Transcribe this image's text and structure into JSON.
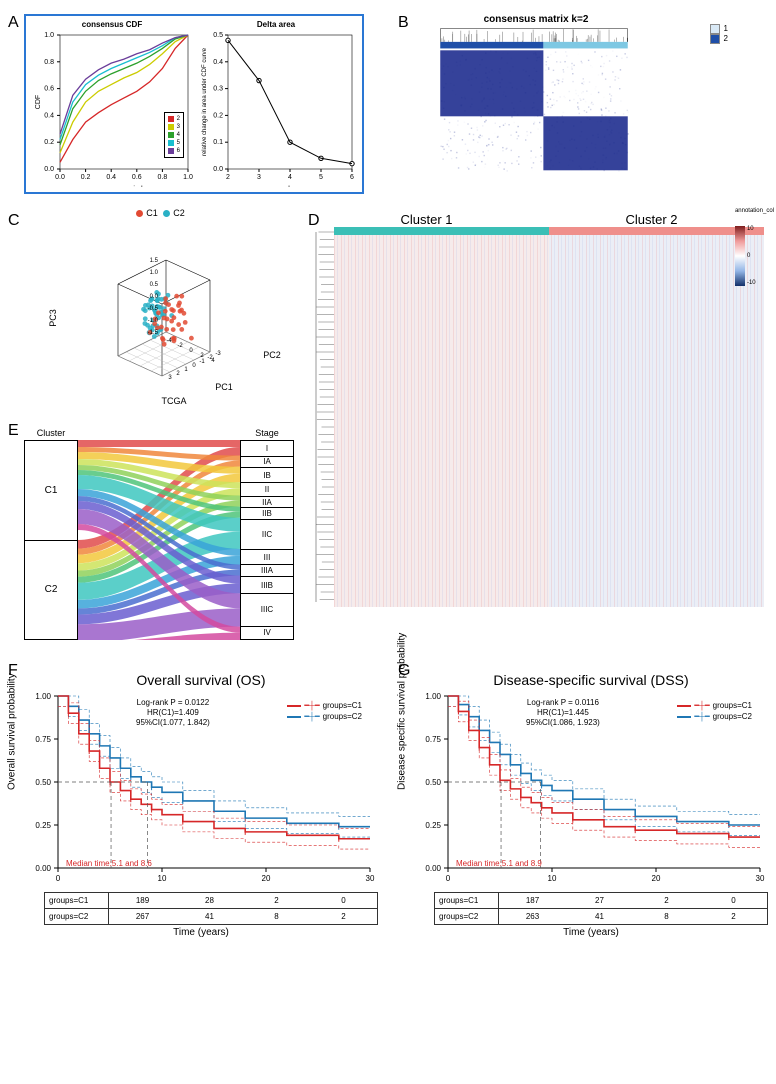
{
  "labels": {
    "A": "A",
    "B": "B",
    "C": "C",
    "D": "D",
    "E": "E",
    "F": "F",
    "G": "G"
  },
  "panelA": {
    "cdf": {
      "title": "consensus CDF",
      "xlabel": "consensus index",
      "ylabel": "CDF",
      "xlim": [
        0,
        1
      ],
      "ylim": [
        0,
        1
      ],
      "xticks": [
        0.0,
        0.2,
        0.4,
        0.6,
        0.8,
        1.0
      ],
      "yticks": [
        0.0,
        0.2,
        0.4,
        0.6,
        0.8,
        1.0
      ],
      "series": [
        {
          "k": "2",
          "color": "#d62728",
          "y": [
            0.05,
            0.22,
            0.35,
            0.42,
            0.48,
            0.53,
            0.58,
            0.65,
            0.75,
            0.9,
            1.0
          ]
        },
        {
          "k": "3",
          "color": "#cccc00",
          "y": [
            0.12,
            0.35,
            0.5,
            0.58,
            0.63,
            0.68,
            0.72,
            0.78,
            0.86,
            0.95,
            1.0
          ]
        },
        {
          "k": "4",
          "color": "#2ca02c",
          "y": [
            0.18,
            0.45,
            0.58,
            0.66,
            0.71,
            0.75,
            0.79,
            0.84,
            0.9,
            0.97,
            1.0
          ]
        },
        {
          "k": "5",
          "color": "#17becf",
          "y": [
            0.22,
            0.5,
            0.63,
            0.7,
            0.75,
            0.79,
            0.83,
            0.87,
            0.92,
            0.98,
            1.0
          ]
        },
        {
          "k": "6",
          "color": "#6a3d9a",
          "y": [
            0.26,
            0.55,
            0.67,
            0.74,
            0.79,
            0.82,
            0.86,
            0.89,
            0.94,
            0.98,
            1.0
          ]
        }
      ],
      "legend_title": ""
    },
    "delta": {
      "title": "Delta area",
      "xlabel": "k",
      "ylabel": "relative change in area under CDF curve",
      "x": [
        2,
        3,
        4,
        5,
        6
      ],
      "y": [
        0.48,
        0.33,
        0.1,
        0.04,
        0.02
      ],
      "xlim": [
        2,
        6
      ],
      "ylim": [
        0,
        0.5
      ],
      "color": "#000000",
      "marker": "circle"
    },
    "border_color": "#2a77d4"
  },
  "panelB": {
    "title": "consensus matrix k=2",
    "cluster_bar": [
      "#1f4fa8",
      "#7ec8e3"
    ],
    "legend": [
      {
        "label": "1",
        "color": "#d9e9f6"
      },
      {
        "label": "2",
        "color": "#1f4fa8"
      }
    ],
    "matrix_low": "#ffffff",
    "matrix_high": "#1f2e8f",
    "block_split": 0.55
  },
  "panelC": {
    "legend": [
      {
        "label": "C1",
        "color": "#e24a33"
      },
      {
        "label": "C2",
        "color": "#2ab0c5"
      }
    ],
    "axes": {
      "x": "PC1",
      "y": "PC3",
      "z": "PC2",
      "sub": "TCGA"
    },
    "xticks": [
      -4,
      -2,
      0,
      2,
      4
    ],
    "yticks": [
      -1.5,
      -1.0,
      -0.5,
      0.0,
      0.5,
      1.0,
      1.5
    ],
    "zticks": [
      -3,
      -2,
      -1,
      0,
      1,
      2,
      3
    ],
    "c1_pts": [
      [
        0.2,
        0.0,
        1.3
      ],
      [
        1.1,
        0.5,
        0.6
      ],
      [
        1.8,
        0.2,
        0.0
      ],
      [
        2.5,
        -0.3,
        -0.5
      ],
      [
        0.7,
        0.8,
        -1.1
      ],
      [
        1.3,
        -0.6,
        1.0
      ],
      [
        0.0,
        0.6,
        -0.2
      ],
      [
        2.0,
        0.9,
        0.8
      ],
      [
        2.8,
        -0.8,
        -1.5
      ],
      [
        0.5,
        -0.2,
        2.1
      ],
      [
        1.6,
        0.3,
        -0.9
      ],
      [
        3.1,
        0.1,
        0.3
      ],
      [
        0.9,
        -0.9,
        0.6
      ],
      [
        2.2,
        0.7,
        -0.3
      ],
      [
        1.0,
        0.0,
        -1.8
      ],
      [
        0.3,
        0.4,
        0.9
      ],
      [
        1.9,
        -0.4,
        1.5
      ],
      [
        0.6,
        0.9,
        0.2
      ],
      [
        2.4,
        -0.1,
        -1.0
      ],
      [
        1.4,
        0.5,
        0.0
      ],
      [
        0.8,
        -0.5,
        -0.6
      ],
      [
        2.7,
        0.3,
        0.9
      ],
      [
        1.2,
        0.8,
        -1.4
      ],
      [
        0.1,
        -0.3,
        0.4
      ],
      [
        1.7,
        0.1,
        2.0
      ],
      [
        2.1,
        -0.7,
        0.2
      ],
      [
        0.4,
        0.2,
        -0.9
      ],
      [
        2.9,
        0.6,
        -0.2
      ],
      [
        1.5,
        -0.2,
        0.7
      ],
      [
        0.0,
        0.0,
        0.0
      ],
      [
        2.3,
        0.4,
        1.2
      ],
      [
        1.1,
        -0.8,
        -0.4
      ],
      [
        0.7,
        0.3,
        1.6
      ],
      [
        2.6,
        -0.5,
        0.5
      ],
      [
        1.8,
        0.7,
        -0.7
      ]
    ],
    "c2_pts": [
      [
        -0.8,
        0.2,
        0.5
      ],
      [
        -1.5,
        0.6,
        -0.3
      ],
      [
        -2.1,
        -0.1,
        0.9
      ],
      [
        -0.3,
        0.8,
        -0.7
      ],
      [
        -1.0,
        -0.4,
        0.2
      ],
      [
        -1.8,
        0.3,
        1.1
      ],
      [
        -2.5,
        0.0,
        -0.5
      ],
      [
        -0.6,
        -0.7,
        0.8
      ],
      [
        -1.3,
        0.5,
        -1.0
      ],
      [
        -2.0,
        -0.3,
        0.0
      ],
      [
        -0.1,
        0.1,
        0.6
      ],
      [
        -1.6,
        0.7,
        0.4
      ],
      [
        -2.3,
        -0.6,
        -0.2
      ],
      [
        -0.9,
        0.4,
        -0.9
      ],
      [
        -1.1,
        -0.2,
        1.3
      ],
      [
        -1.9,
        0.8,
        -0.4
      ],
      [
        -0.4,
        -0.5,
        0.1
      ],
      [
        -2.7,
        0.2,
        0.7
      ],
      [
        -1.4,
        0.0,
        -0.6
      ],
      [
        -0.7,
        0.6,
        1.0
      ],
      [
        -2.2,
        -0.8,
        0.3
      ],
      [
        -1.2,
        0.3,
        -0.2
      ],
      [
        -0.2,
        -0.1,
        -1.1
      ],
      [
        -1.7,
        0.5,
        0.8
      ],
      [
        -2.4,
        0.1,
        -0.8
      ],
      [
        -0.5,
        -0.6,
        0.5
      ],
      [
        -1.0,
        0.9,
        0.0
      ],
      [
        -2.6,
        -0.4,
        0.6
      ],
      [
        -1.5,
        0.2,
        -0.5
      ],
      [
        -0.8,
        -0.3,
        1.2
      ],
      [
        -2.0,
        0.6,
        0.2
      ],
      [
        -1.3,
        -0.7,
        -0.3
      ],
      [
        -0.3,
        0.4,
        0.9
      ],
      [
        -1.8,
        0.0,
        -1.2
      ],
      [
        -2.8,
        0.3,
        0.4
      ],
      [
        -0.6,
        0.7,
        -0.1
      ],
      [
        -1.1,
        -0.5,
        0.7
      ],
      [
        -2.1,
        0.4,
        -0.6
      ],
      [
        -0.9,
        0.1,
        0.3
      ],
      [
        -1.6,
        -0.2,
        -0.9
      ],
      [
        -0.4,
        0.8,
        0.6
      ],
      [
        -2.3,
        0.5,
        0.1
      ],
      [
        -1.4,
        -0.6,
        0.9
      ],
      [
        -0.7,
        0.0,
        -0.4
      ],
      [
        -1.9,
        0.3,
        0.5
      ]
    ]
  },
  "panelD": {
    "clusters": [
      {
        "label": "Cluster 1",
        "bar_color": "#3bbfb6"
      },
      {
        "label": "Cluster 2",
        "bar_color": "#ef8f8b"
      }
    ],
    "heat_low": "#9fb9e0",
    "heat_mid": "#ffffff",
    "heat_high": "#e59595",
    "legend_title": "annotation_col",
    "scale_min": -10,
    "scale_max": 10,
    "grad_colors": [
      "#7f1d1d",
      "#ef9a9a",
      "#ffffff",
      "#93b6e6",
      "#12306a"
    ]
  },
  "panelE": {
    "left_title": "Cluster",
    "right_title": "Stage",
    "clusters": [
      "C1",
      "C2"
    ],
    "stages": [
      "I",
      "IA",
      "IB",
      "II",
      "IIA",
      "IIB",
      "IIC",
      "III",
      "IIIA",
      "IIIB",
      "IIIC",
      "IV"
    ],
    "stage_heights": [
      0.7,
      0.5,
      0.7,
      0.6,
      0.5,
      0.5,
      1.4,
      0.7,
      0.5,
      0.8,
      1.5,
      0.6
    ],
    "band_colors": [
      "#e14b4b",
      "#f0873c",
      "#f2c83c",
      "#cde35a",
      "#8fd15a",
      "#4fc47a",
      "#3ec7c0",
      "#3aa3d8",
      "#4a6fd0",
      "#6a5ed0",
      "#9a5ec8",
      "#d44aa0"
    ]
  },
  "panelF": {
    "title": "Overall survival (OS)",
    "ylabel": "Overall survival probability",
    "xlabel": "Time (years)",
    "stats": {
      "p": "Log-rank P = 0.0122",
      "hr": "HR(C1)=1.409",
      "ci": "95%CI(1.077, 1.842)"
    },
    "legend": [
      {
        "label": "groups=C1",
        "color": "#d62728"
      },
      {
        "label": "groups=C2",
        "color": "#1f77b4"
      }
    ],
    "median_text": "Median time:5.1 and 8.6",
    "median_color": "#d62728",
    "xlim": [
      0,
      30
    ],
    "ylim": [
      0,
      1
    ],
    "xticks": [
      0,
      10,
      20,
      30
    ],
    "yticks": [
      0.0,
      0.25,
      0.5,
      0.75,
      1.0
    ],
    "c1": {
      "color": "#d62728",
      "t": [
        0,
        1,
        2,
        3,
        4,
        5,
        6,
        7,
        8,
        9,
        10,
        12,
        15,
        18,
        22,
        27,
        30
      ],
      "s": [
        1.0,
        0.9,
        0.78,
        0.68,
        0.58,
        0.5,
        0.45,
        0.4,
        0.37,
        0.34,
        0.31,
        0.27,
        0.23,
        0.21,
        0.19,
        0.17,
        0.17
      ]
    },
    "c2": {
      "color": "#1f77b4",
      "t": [
        0,
        1,
        2,
        3,
        4,
        5,
        6,
        7,
        8,
        9,
        10,
        12,
        15,
        18,
        22,
        27,
        30
      ],
      "s": [
        1.0,
        0.94,
        0.86,
        0.78,
        0.71,
        0.64,
        0.58,
        0.53,
        0.5,
        0.47,
        0.44,
        0.39,
        0.33,
        0.29,
        0.26,
        0.24,
        0.24
      ]
    },
    "median_x": [
      5.1,
      8.6
    ],
    "risk": {
      "rows": [
        {
          "label": "groups=C1",
          "vals": [
            189,
            28,
            2,
            0
          ]
        },
        {
          "label": "groups=C2",
          "vals": [
            267,
            41,
            8,
            2
          ]
        }
      ]
    }
  },
  "panelG": {
    "title": "Disease-specific survival (DSS)",
    "ylabel": "Disease specific survival probability",
    "xlabel": "Time (years)",
    "stats": {
      "p": "Log-rank P = 0.0116",
      "hr": "HR(C1)=1.445",
      "ci": "95%CI(1.086, 1.923)"
    },
    "legend": [
      {
        "label": "groups=C1",
        "color": "#d62728"
      },
      {
        "label": "groups=C2",
        "color": "#1f77b4"
      }
    ],
    "median_text": "Median time:5.1 and 8.9",
    "median_color": "#d62728",
    "xlim": [
      0,
      30
    ],
    "ylim": [
      0,
      1
    ],
    "xticks": [
      0,
      10,
      20,
      30
    ],
    "yticks": [
      0.0,
      0.25,
      0.5,
      0.75,
      1.0
    ],
    "c1": {
      "color": "#d62728",
      "t": [
        0,
        1,
        2,
        3,
        4,
        5,
        6,
        7,
        8,
        9,
        10,
        12,
        15,
        18,
        22,
        27,
        30
      ],
      "s": [
        1.0,
        0.91,
        0.8,
        0.7,
        0.6,
        0.51,
        0.46,
        0.41,
        0.38,
        0.35,
        0.32,
        0.28,
        0.24,
        0.22,
        0.2,
        0.18,
        0.18
      ]
    },
    "c2": {
      "color": "#1f77b4",
      "t": [
        0,
        1,
        2,
        3,
        4,
        5,
        6,
        7,
        8,
        9,
        10,
        12,
        15,
        18,
        22,
        27,
        30
      ],
      "s": [
        1.0,
        0.95,
        0.88,
        0.8,
        0.73,
        0.66,
        0.6,
        0.55,
        0.51,
        0.48,
        0.45,
        0.4,
        0.34,
        0.3,
        0.27,
        0.25,
        0.25
      ]
    },
    "median_x": [
      5.1,
      8.9
    ],
    "risk": {
      "rows": [
        {
          "label": "groups=C1",
          "vals": [
            187,
            27,
            2,
            0
          ]
        },
        {
          "label": "groups=C2",
          "vals": [
            263,
            41,
            8,
            2
          ]
        }
      ]
    }
  }
}
